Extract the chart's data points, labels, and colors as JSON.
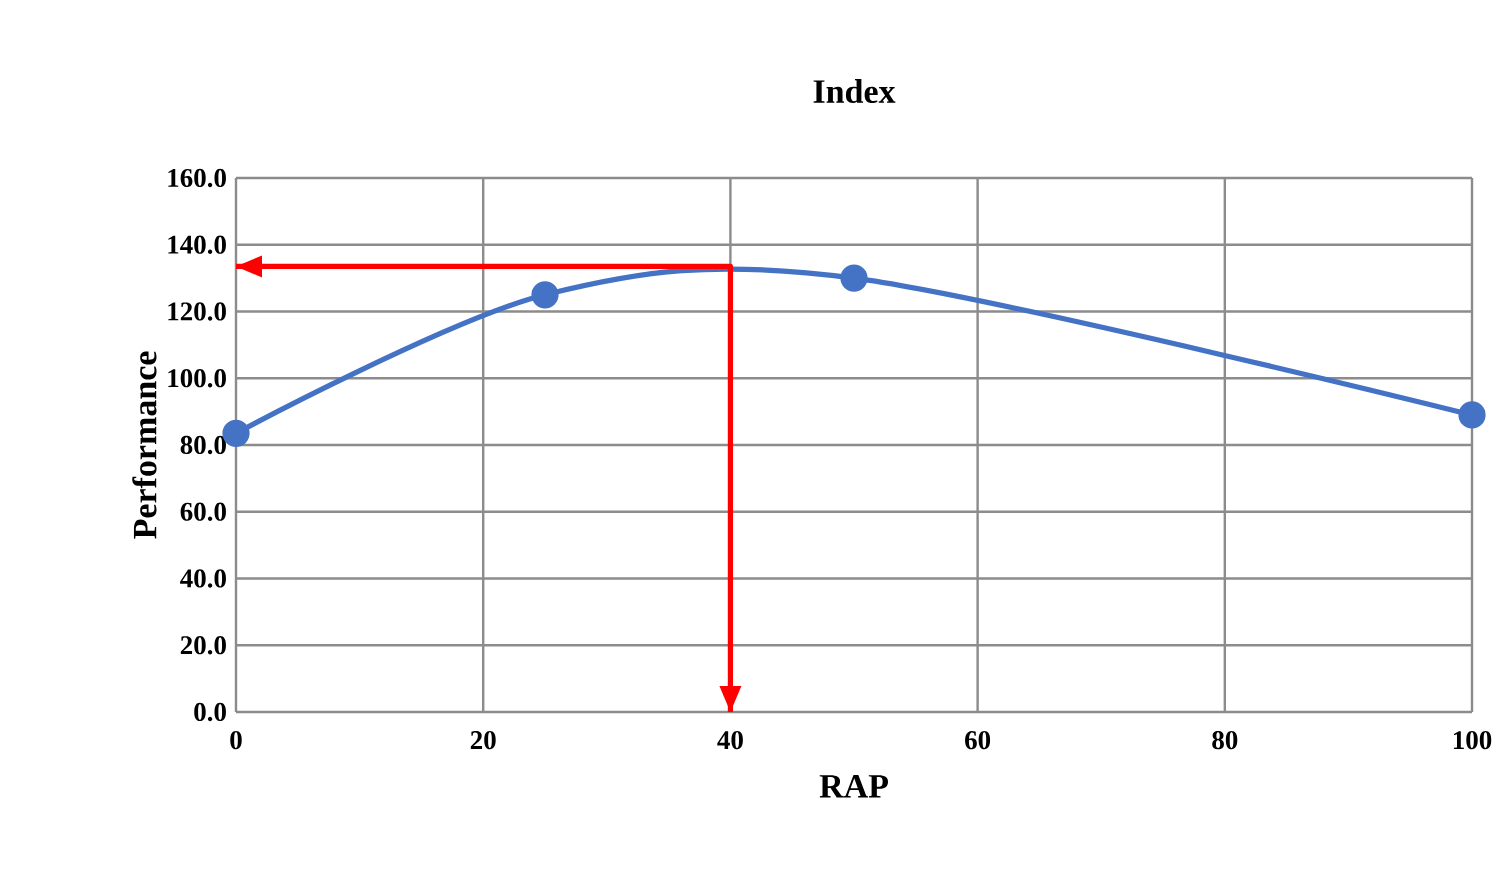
{
  "chart_data": {
    "type": "line",
    "title": "Index",
    "xlabel": "RAP",
    "ylabel": "Performance",
    "xlim": [
      0,
      100
    ],
    "xticks": [
      0,
      20,
      40,
      60,
      80,
      100
    ],
    "ylim": [
      0,
      160
    ],
    "yticks": [
      {
        "value": 0,
        "label": "0.0"
      },
      {
        "value": 20,
        "label": "20.0"
      },
      {
        "value": 40,
        "label": "40.0"
      },
      {
        "value": 60,
        "label": "60.0"
      },
      {
        "value": 80,
        "label": "80.0"
      },
      {
        "value": 100,
        "label": "100.0"
      },
      {
        "value": 120,
        "label": "120.0"
      },
      {
        "value": 140,
        "label": "140.0"
      },
      {
        "value": 160,
        "label": "160.0"
      }
    ],
    "grid": true,
    "series": [
      {
        "color": "#4472c4",
        "x": [
          0,
          25,
          50,
          100
        ],
        "values": [
          83.5,
          125,
          130,
          89
        ],
        "marker": "circle"
      },
      {
        "color": "#ff0000",
        "x": [
          0,
          40,
          40
        ],
        "values": [
          133.5,
          133.5,
          0
        ],
        "marker": "none"
      }
    ]
  }
}
